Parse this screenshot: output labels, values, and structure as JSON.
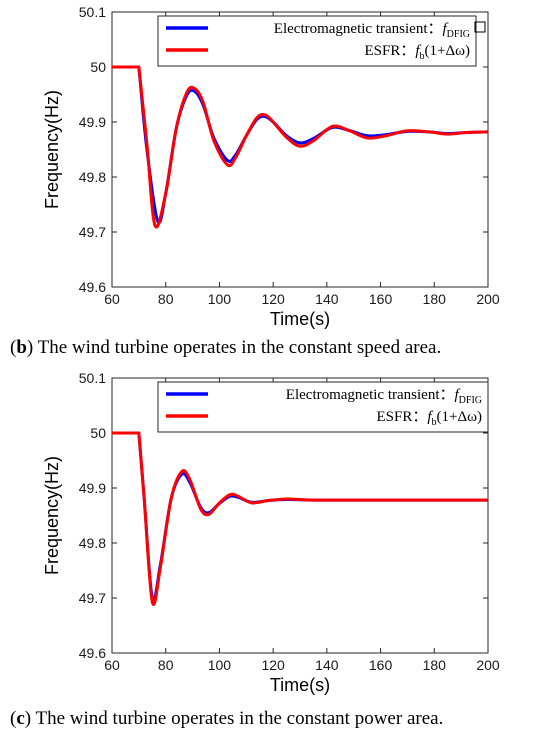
{
  "chart_data": [
    {
      "type": "line",
      "panel_label": "b",
      "caption": "The wind turbine operates in the constant speed area.",
      "xlabel": "Time(s)",
      "ylabel": "Frequency(Hz)",
      "xlim": [
        60,
        200
      ],
      "ylim": [
        49.6,
        50.1
      ],
      "xticks": [
        "60",
        "80",
        "100",
        "120",
        "140",
        "160",
        "180",
        "200"
      ],
      "yticks": [
        "49.6",
        "49.7",
        "49.8",
        "49.9",
        "50",
        "50.1"
      ],
      "grid": false,
      "legend_position": "top-right",
      "series": [
        {
          "name": "Electromagnetic transient: f_DFIG",
          "legend_text": "Electromagnetic transient：",
          "legend_math": "f",
          "legend_sub": "DFIG",
          "color": "#0000ff",
          "x": [
            60,
            70,
            73,
            77,
            80,
            84,
            88,
            91,
            94,
            98,
            103,
            106,
            110,
            114,
            117,
            120,
            125,
            130,
            135,
            142,
            148,
            155,
            162,
            170,
            178,
            185,
            192,
            200
          ],
          "y": [
            50.0,
            50.0,
            49.85,
            49.72,
            49.77,
            49.89,
            49.95,
            49.955,
            49.93,
            49.87,
            49.83,
            49.84,
            49.875,
            49.905,
            49.91,
            49.9,
            49.875,
            49.862,
            49.87,
            49.89,
            49.885,
            49.875,
            49.877,
            49.883,
            49.882,
            49.879,
            49.881,
            49.882
          ]
        },
        {
          "name": "ESFR: f_b(1+Δω)",
          "legend_text": "ESFR：",
          "legend_math": "f",
          "legend_sub": "b",
          "legend_tail": "(1+Δω)",
          "color": "#ff0000",
          "x": [
            60,
            70,
            73,
            76,
            80,
            84,
            88,
            91,
            94,
            98,
            103,
            106,
            110,
            114,
            117,
            120,
            125,
            130,
            135,
            142,
            148,
            155,
            162,
            170,
            178,
            185,
            192,
            200
          ],
          "y": [
            50.0,
            50.0,
            49.86,
            49.712,
            49.77,
            49.89,
            49.955,
            49.96,
            49.935,
            49.865,
            49.822,
            49.835,
            49.875,
            49.908,
            49.913,
            49.9,
            49.872,
            49.856,
            49.866,
            49.892,
            49.885,
            49.871,
            49.875,
            49.884,
            49.882,
            49.878,
            49.881,
            49.882
          ]
        }
      ]
    },
    {
      "type": "line",
      "panel_label": "c",
      "caption": "The wind turbine operates in the constant power area.",
      "xlabel": "Time(s)",
      "ylabel": "Frequency(Hz)",
      "xlim": [
        60,
        200
      ],
      "ylim": [
        49.6,
        50.1
      ],
      "xticks": [
        "60",
        "80",
        "100",
        "120",
        "140",
        "160",
        "180",
        "200"
      ],
      "yticks": [
        "49.6",
        "49.7",
        "49.8",
        "49.9",
        "50",
        "50.1"
      ],
      "grid": false,
      "legend_position": "top-right",
      "series": [
        {
          "name": "Electromagnetic transient: f_DFIG",
          "legend_text": "Electromagnetic transient：",
          "legend_math": "f",
          "legend_sub": "DFIG",
          "color": "#0000ff",
          "x": [
            60,
            70,
            72,
            75,
            78,
            82,
            86,
            89,
            93,
            96,
            100,
            104,
            107,
            112,
            118,
            125,
            135,
            150,
            170,
            200
          ],
          "y": [
            50.0,
            50.0,
            49.88,
            49.7,
            49.76,
            49.88,
            49.925,
            49.91,
            49.865,
            49.855,
            49.872,
            49.885,
            49.883,
            49.874,
            49.877,
            49.879,
            49.878,
            49.878,
            49.878,
            49.878
          ]
        },
        {
          "name": "ESFR: f_b(1+Δω)",
          "legend_text": "ESFR：",
          "legend_math": "f",
          "legend_sub": "b",
          "legend_tail": "(1+Δω)",
          "color": "#ff0000",
          "x": [
            60,
            70,
            72,
            75,
            78,
            82,
            86,
            89,
            93,
            96,
            100,
            104,
            107,
            112,
            118,
            125,
            135,
            150,
            170,
            200
          ],
          "y": [
            50.0,
            50.0,
            49.88,
            49.693,
            49.755,
            49.88,
            49.93,
            49.915,
            49.862,
            49.852,
            49.873,
            49.888,
            49.885,
            49.873,
            49.877,
            49.88,
            49.878,
            49.878,
            49.878,
            49.878
          ]
        }
      ]
    }
  ]
}
